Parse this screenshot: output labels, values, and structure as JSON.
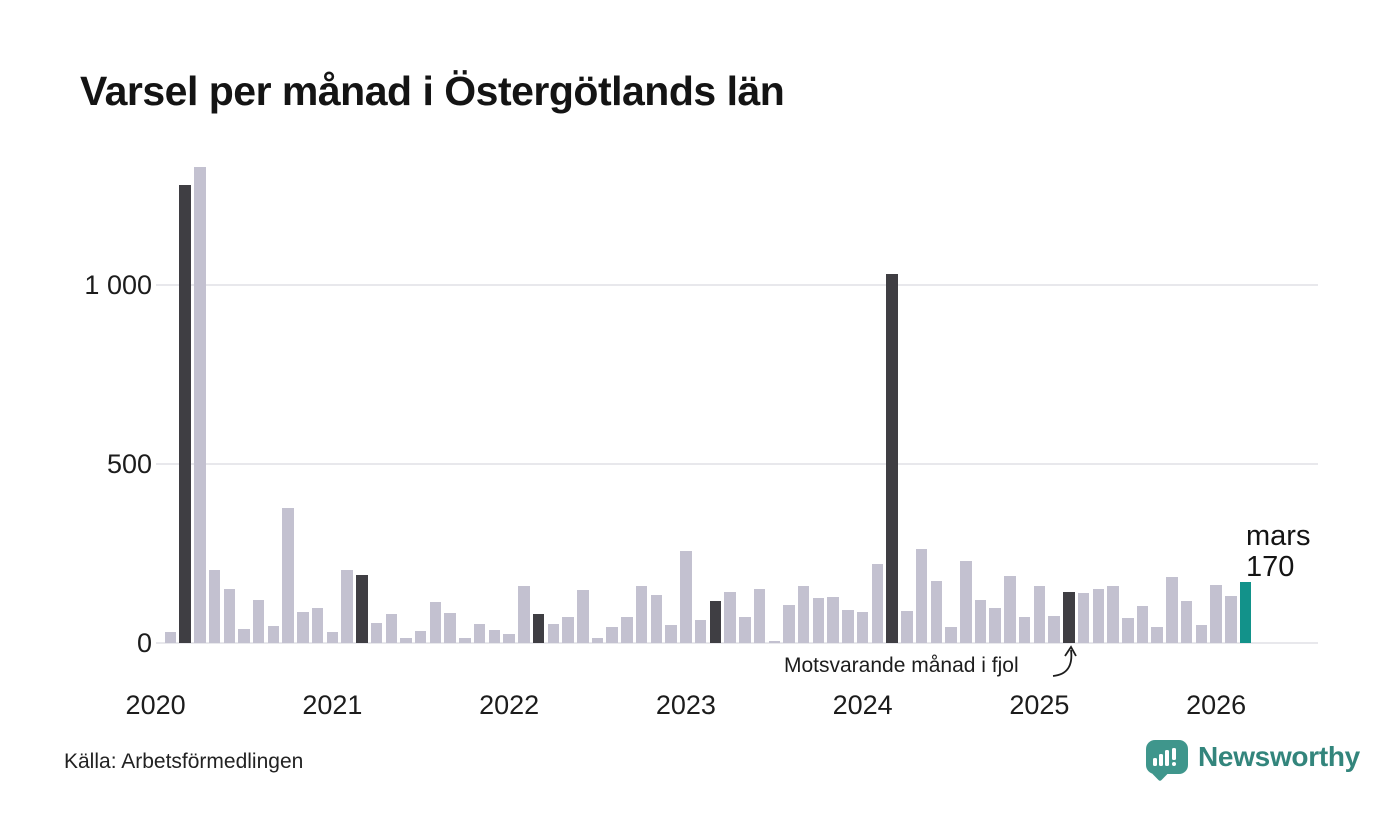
{
  "title": "Varsel per månad i Östergötlands län",
  "annotation": "Motsvarande månad i fjol",
  "current_label": {
    "line1": "mars",
    "line2": "170"
  },
  "source": "Källa: Arbetsförmedlingen",
  "logo": {
    "text": "Newsworthy",
    "icon": "newsworthy-speech-bubble-chart-icon"
  },
  "colors": {
    "bar_default": "#c3c1d0",
    "bar_march": "#3f3e43",
    "bar_current": "#12928a",
    "grid": "#e8e8ec",
    "logo_teal": "#33857c",
    "text": "#141414"
  },
  "chart_data": {
    "type": "bar",
    "title": "Varsel per månad i Östergötlands län",
    "xlabel": "",
    "ylabel": "",
    "ylim": [
      0,
      1350
    ],
    "grid": "horizontal",
    "legend": "none",
    "highlight_rule": "March of every year dark; latest month (mars 2026) teal with data label 170",
    "yticks": [
      {
        "value": 0,
        "label": "0"
      },
      {
        "value": 500,
        "label": "500"
      },
      {
        "value": 1000,
        "label": "1 000"
      }
    ],
    "xticks": [
      {
        "index": 0,
        "label": "2020"
      },
      {
        "index": 12,
        "label": "2021"
      },
      {
        "index": 24,
        "label": "2022"
      },
      {
        "index": 36,
        "label": "2023"
      },
      {
        "index": 48,
        "label": "2024"
      },
      {
        "index": 60,
        "label": "2025"
      },
      {
        "index": 72,
        "label": "2026"
      }
    ],
    "months": [
      "2020-01",
      "2020-02",
      "2020-03",
      "2020-04",
      "2020-05",
      "2020-06",
      "2020-07",
      "2020-08",
      "2020-09",
      "2020-10",
      "2020-11",
      "2020-12",
      "2021-01",
      "2021-02",
      "2021-03",
      "2021-04",
      "2021-05",
      "2021-06",
      "2021-07",
      "2021-08",
      "2021-09",
      "2021-10",
      "2021-11",
      "2021-12",
      "2022-01",
      "2022-02",
      "2022-03",
      "2022-04",
      "2022-05",
      "2022-06",
      "2022-07",
      "2022-08",
      "2022-09",
      "2022-10",
      "2022-11",
      "2022-12",
      "2023-01",
      "2023-02",
      "2023-03",
      "2023-04",
      "2023-05",
      "2023-06",
      "2023-07",
      "2023-08",
      "2023-09",
      "2023-10",
      "2023-11",
      "2023-12",
      "2024-01",
      "2024-02",
      "2024-03",
      "2024-04",
      "2024-05",
      "2024-06",
      "2024-07",
      "2024-08",
      "2024-09",
      "2024-10",
      "2024-11",
      "2024-12",
      "2025-01",
      "2025-02",
      "2025-03",
      "2025-04",
      "2025-05",
      "2025-06",
      "2025-07",
      "2025-08",
      "2025-09",
      "2025-10",
      "2025-11",
      "2025-12",
      "2026-01",
      "2026-02",
      "2026-03"
    ],
    "values": [
      0,
      30,
      1280,
      1330,
      205,
      150,
      40,
      120,
      47,
      378,
      86,
      98,
      30,
      205,
      190,
      55,
      80,
      15,
      33,
      115,
      83,
      13,
      54,
      37,
      25,
      160,
      82,
      52,
      72,
      149,
      13,
      46,
      73,
      158,
      133,
      49,
      256,
      63,
      118,
      142,
      74,
      151,
      7,
      107,
      160,
      126,
      128,
      93,
      88,
      220,
      1030,
      90,
      262,
      174,
      46,
      230,
      120,
      97,
      188,
      74,
      160,
      76,
      142,
      139,
      150,
      160,
      70,
      102,
      45,
      184,
      116,
      51,
      163,
      130,
      170
    ]
  }
}
